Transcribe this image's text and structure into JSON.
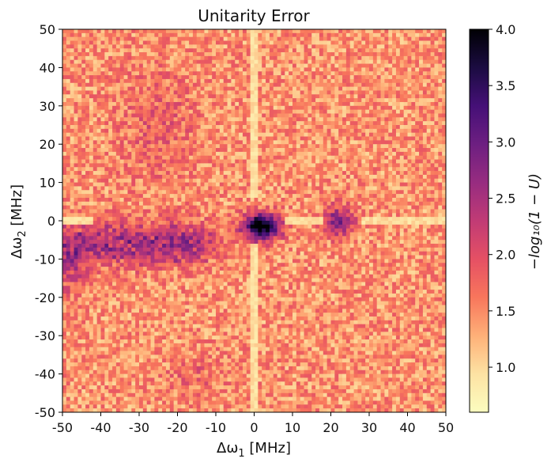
{
  "chart_data": {
    "type": "heatmap",
    "title": "Unitarity Error",
    "xlabel": "Δω",
    "xlabel_sub": "1",
    "xlabel_unit": " [MHz]",
    "ylabel": "Δω",
    "ylabel_sub": "2",
    "ylabel_unit": " [MHz]",
    "colorbar_label": "−log₁₀(1 − U)",
    "xlim": [
      -50,
      50
    ],
    "ylim": [
      -50,
      50
    ],
    "x_ticks": [
      -50,
      -40,
      -30,
      -20,
      -10,
      0,
      10,
      20,
      30,
      40,
      50
    ],
    "x_tick_labels": [
      "-50",
      "-40",
      "-30",
      "-20",
      "-10",
      "0",
      "10",
      "20",
      "30",
      "40",
      "50"
    ],
    "y_ticks": [
      50,
      40,
      30,
      20,
      10,
      0,
      -10,
      -20,
      -30,
      -40,
      -50
    ],
    "y_tick_labels": [
      "50",
      "40",
      "30",
      "20",
      "10",
      "0",
      "-10",
      "-20",
      "-30",
      "-40",
      "-50"
    ],
    "colorbar_range": [
      0.6,
      4.0
    ],
    "colorbar_ticks": [
      1.0,
      1.5,
      2.0,
      2.5,
      3.0,
      3.5,
      4.0
    ],
    "colorbar_tick_labels": [
      "1.0",
      "1.5",
      "2.0",
      "2.5",
      "3.0",
      "3.5",
      "4.0"
    ],
    "colormap": "magma_r",
    "grid_resolution_MHz": 1,
    "features": [
      {
        "description": "dark core",
        "x": 1,
        "y": -1,
        "value": 3.9
      },
      {
        "description": "broad band",
        "x_range": [
          -50,
          10
        ],
        "y": -6,
        "value": 2.8
      },
      {
        "description": "right lobe",
        "x": 22,
        "y": 0,
        "value": 2.8
      }
    ],
    "background_value": 1.45
  }
}
